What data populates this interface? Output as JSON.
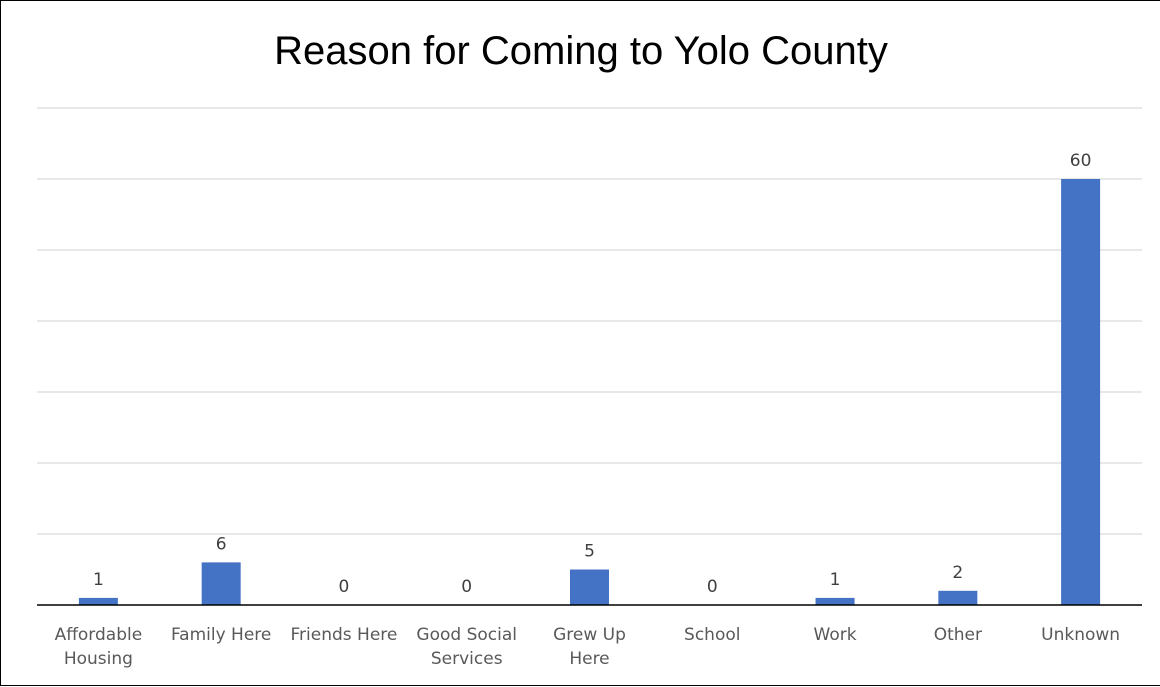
{
  "chart_data": {
    "type": "bar",
    "title": "Reason for Coming to Yolo County",
    "categories": [
      [
        "Affordable",
        "Housing"
      ],
      [
        "Family Here"
      ],
      [
        "Friends Here"
      ],
      [
        "Good Social",
        "Services"
      ],
      [
        "Grew Up",
        "Here"
      ],
      [
        "School"
      ],
      [
        "Work"
      ],
      [
        "Other"
      ],
      [
        "Unknown"
      ]
    ],
    "values": [
      1,
      6,
      0,
      0,
      5,
      0,
      1,
      2,
      60
    ],
    "data_labels": [
      "1",
      "6",
      "0",
      "0",
      "5",
      "0",
      "1",
      "2",
      "60"
    ],
    "ylim": [
      0,
      70
    ],
    "ytick_step": 10,
    "grid": true,
    "bar_color": "#4472C4",
    "gridline_color": "#D9D9D9",
    "axis_color": "#000000"
  }
}
